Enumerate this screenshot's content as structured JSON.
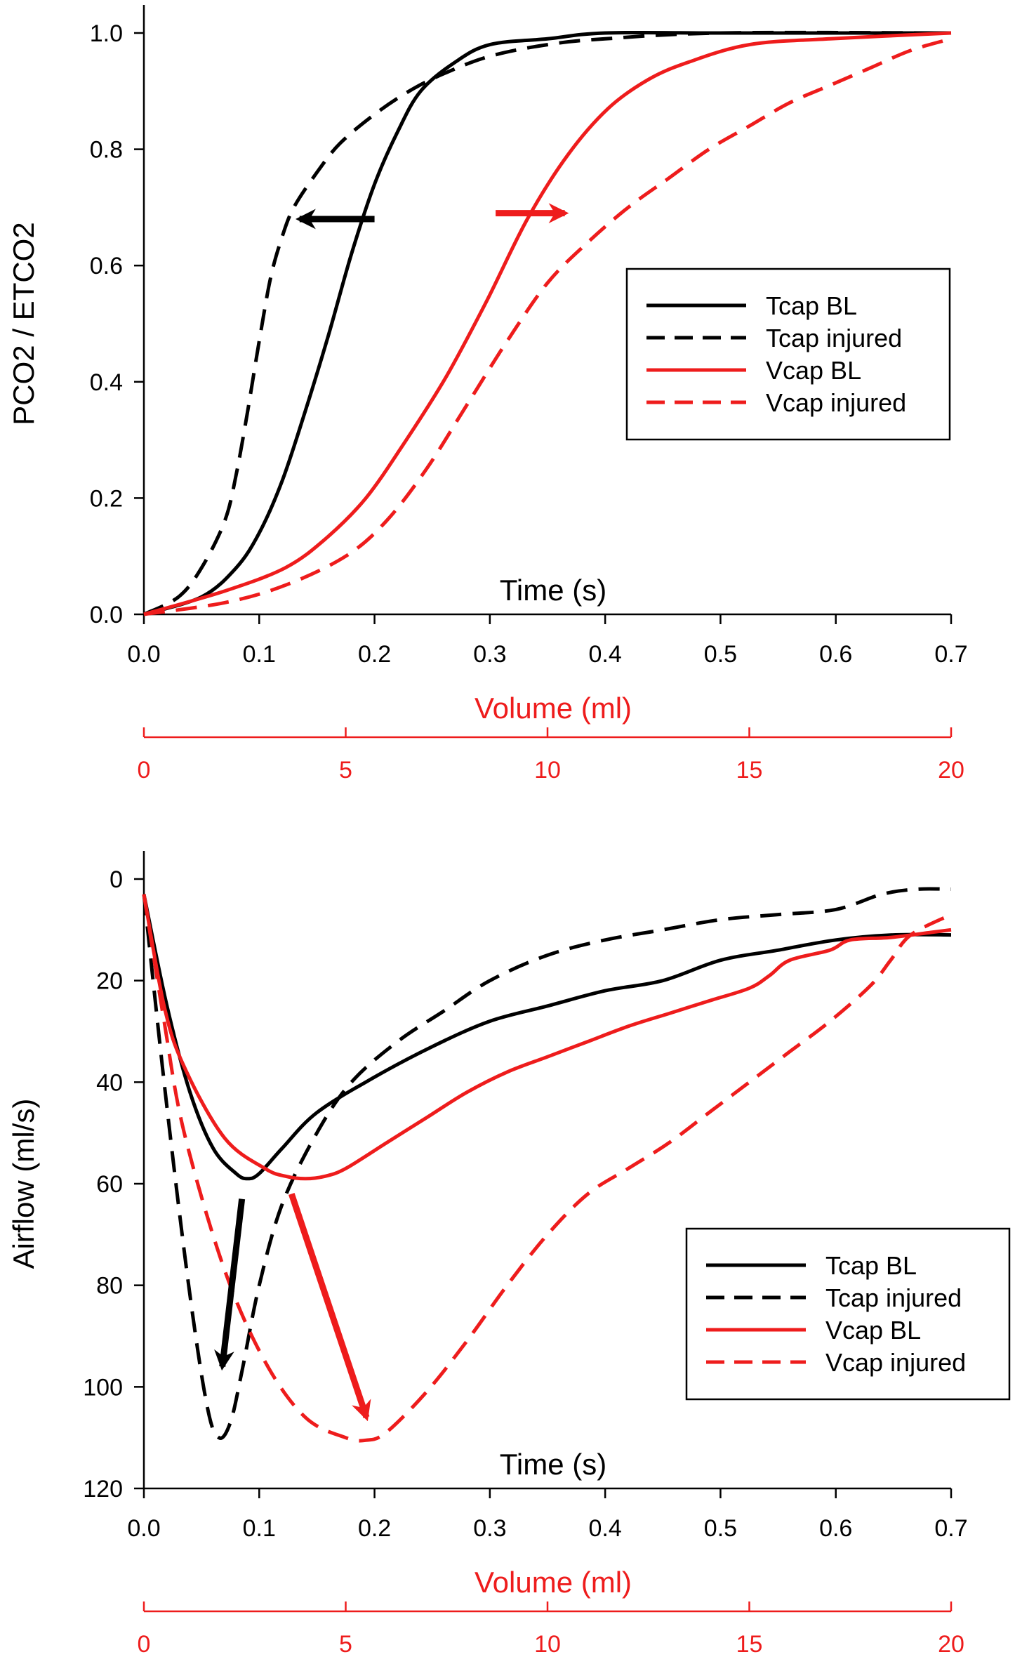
{
  "colors": {
    "black": "#000000",
    "red": "#ee1c1c"
  },
  "chart_data": [
    {
      "type": "line",
      "ylabel": "PCO2 / ETCO2",
      "xlabel": "Time (s)",
      "xlabel2": "Volume (ml)",
      "xlim": [
        0,
        0.7
      ],
      "ylim": [
        0,
        1.0
      ],
      "x2lim": [
        0,
        20
      ],
      "x_ticks": [
        "0.0",
        "0.1",
        "0.2",
        "0.3",
        "0.4",
        "0.5",
        "0.6",
        "0.7"
      ],
      "y_ticks": [
        "0.0",
        "0.2",
        "0.4",
        "0.6",
        "0.8",
        "1.0"
      ],
      "x2_ticks": [
        "0",
        "5",
        "10",
        "15",
        "20"
      ],
      "legend": [
        "Tcap BL",
        "Tcap injured",
        "Vcap BL",
        "Vcap injured"
      ],
      "series": [
        {
          "name": "Tcap BL",
          "color": "black",
          "dash": false,
          "axis": "time",
          "x": [
            0,
            0.05,
            0.08,
            0.1,
            0.12,
            0.14,
            0.16,
            0.18,
            0.2,
            0.22,
            0.24,
            0.27,
            0.3,
            0.35,
            0.4,
            0.5,
            0.6,
            0.7
          ],
          "y": [
            0,
            0.03,
            0.08,
            0.14,
            0.23,
            0.35,
            0.48,
            0.62,
            0.74,
            0.83,
            0.9,
            0.95,
            0.98,
            0.99,
            1.0,
            1.0,
            1.0,
            1.0
          ]
        },
        {
          "name": "Tcap injured",
          "color": "black",
          "dash": true,
          "axis": "time",
          "x": [
            0,
            0.03,
            0.05,
            0.07,
            0.08,
            0.09,
            0.1,
            0.11,
            0.12,
            0.13,
            0.15,
            0.17,
            0.2,
            0.23,
            0.26,
            0.3,
            0.35,
            0.4,
            0.5,
            0.7
          ],
          "y": [
            0,
            0.03,
            0.08,
            0.16,
            0.24,
            0.35,
            0.47,
            0.58,
            0.65,
            0.7,
            0.76,
            0.81,
            0.86,
            0.9,
            0.93,
            0.96,
            0.98,
            0.99,
            1.0,
            1.0
          ]
        },
        {
          "name": "Vcap BL",
          "color": "red",
          "dash": false,
          "axis": "volume",
          "x": [
            0,
            2,
            3.5,
            4.5,
            5.5,
            6.5,
            7.5,
            8.5,
            9.5,
            10.5,
            11.5,
            12.5,
            13.5,
            15,
            17,
            20
          ],
          "y": [
            0,
            0.04,
            0.08,
            0.13,
            0.2,
            0.3,
            0.41,
            0.54,
            0.68,
            0.79,
            0.87,
            0.92,
            0.95,
            0.98,
            0.99,
            1.0
          ]
        },
        {
          "name": "Vcap injured",
          "color": "red",
          "dash": true,
          "axis": "volume",
          "x": [
            0,
            2,
            3.5,
            5,
            6,
            7,
            8,
            9,
            10,
            11,
            12,
            13,
            14,
            15,
            16,
            17,
            18,
            19,
            20
          ],
          "y": [
            0,
            0.02,
            0.05,
            0.1,
            0.16,
            0.25,
            0.36,
            0.47,
            0.57,
            0.64,
            0.7,
            0.75,
            0.8,
            0.84,
            0.88,
            0.91,
            0.94,
            0.97,
            0.99
          ]
        }
      ],
      "arrows": [
        {
          "color": "black",
          "from": [
            0.2,
            0.68
          ],
          "to": [
            0.135,
            0.68
          ],
          "axis": "time"
        },
        {
          "color": "red",
          "from": [
            0.305,
            0.69
          ],
          "to": [
            0.365,
            0.69
          ],
          "axis": "time"
        }
      ]
    },
    {
      "type": "line",
      "ylabel": "Airflow (ml/s)",
      "xlabel": "Time (s)",
      "xlabel2": "Volume (ml)",
      "xlim": [
        0,
        0.7
      ],
      "ylim": [
        0,
        120
      ],
      "y_inverted": true,
      "x2lim": [
        0,
        20
      ],
      "x_ticks": [
        "0.0",
        "0.1",
        "0.2",
        "0.3",
        "0.4",
        "0.5",
        "0.6",
        "0.7"
      ],
      "y_ticks": [
        "0",
        "20",
        "40",
        "60",
        "80",
        "100",
        "120"
      ],
      "x2_ticks": [
        "0",
        "5",
        "10",
        "15",
        "20"
      ],
      "legend": [
        "Tcap BL",
        "Tcap injured",
        "Vcap BL",
        "Vcap injured"
      ],
      "series": [
        {
          "name": "Tcap BL",
          "color": "black",
          "dash": false,
          "axis": "time",
          "x": [
            0,
            0.02,
            0.04,
            0.06,
            0.08,
            0.09,
            0.1,
            0.12,
            0.15,
            0.2,
            0.25,
            0.3,
            0.35,
            0.4,
            0.45,
            0.5,
            0.55,
            0.6,
            0.65,
            0.7
          ],
          "y": [
            3,
            25,
            42,
            53,
            58,
            59,
            58,
            53,
            46,
            39,
            33,
            28,
            25,
            22,
            20,
            16,
            14,
            12,
            11,
            11
          ]
        },
        {
          "name": "Tcap injured",
          "color": "black",
          "dash": true,
          "axis": "time",
          "x": [
            0,
            0.02,
            0.04,
            0.055,
            0.065,
            0.075,
            0.085,
            0.1,
            0.12,
            0.15,
            0.18,
            0.22,
            0.26,
            0.3,
            0.35,
            0.4,
            0.45,
            0.5,
            0.55,
            0.6,
            0.64,
            0.67,
            0.7
          ],
          "y": [
            3,
            45,
            82,
            104,
            110,
            107,
            97,
            80,
            64,
            50,
            40,
            32,
            26,
            20,
            15,
            12,
            10,
            8,
            7,
            6,
            3,
            2,
            2
          ]
        },
        {
          "name": "Vcap BL",
          "color": "red",
          "dash": false,
          "axis": "volume",
          "x": [
            0,
            0.5,
            1,
            2,
            3,
            3.5,
            4,
            4.5,
            5,
            6,
            7,
            8,
            9,
            10,
            11,
            12,
            13,
            14,
            15,
            15.5,
            16,
            17,
            17.5,
            18.5,
            19.5,
            20
          ],
          "y": [
            3,
            25,
            37,
            51,
            57,
            58.5,
            59,
            58.5,
            57,
            52,
            47,
            42,
            38,
            35,
            32,
            29,
            26.5,
            24,
            21.5,
            19,
            16,
            14,
            12,
            11.5,
            10.5,
            10
          ]
        },
        {
          "name": "Vcap injured",
          "color": "red",
          "dash": true,
          "axis": "volume",
          "x": [
            0,
            0.5,
            1,
            2,
            3,
            4,
            5,
            5.5,
            6,
            7,
            8,
            9,
            10,
            11,
            12,
            13,
            14,
            15,
            16,
            17,
            18,
            18.5,
            19,
            20
          ],
          "y": [
            3,
            28,
            50,
            77,
            95,
            106,
            110,
            110.5,
            109,
            101,
            91,
            80,
            70,
            62,
            57,
            52,
            46,
            40,
            34,
            28,
            21,
            16,
            11,
            7
          ]
        }
      ],
      "arrows": [
        {
          "color": "black",
          "from": [
            0.085,
            63
          ],
          "to": [
            0.068,
            96
          ],
          "axis": "time"
        },
        {
          "color": "red",
          "from": [
            0.128,
            62
          ],
          "to": [
            0.193,
            106
          ],
          "axis": "time"
        }
      ]
    }
  ]
}
